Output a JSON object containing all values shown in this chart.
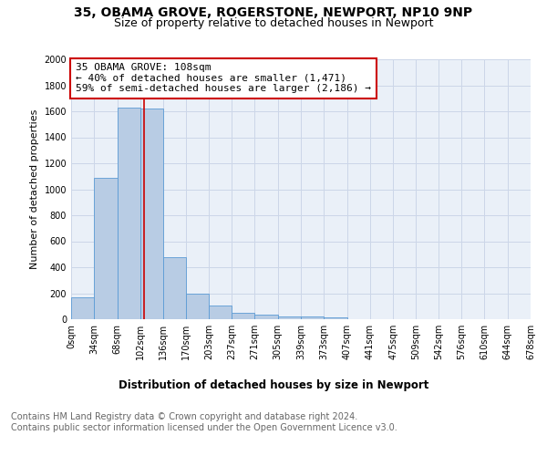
{
  "title1": "35, OBAMA GROVE, ROGERSTONE, NEWPORT, NP10 9NP",
  "title2": "Size of property relative to detached houses in Newport",
  "xlabel": "Distribution of detached houses by size in Newport",
  "ylabel": "Number of detached properties",
  "bin_edges": [
    0,
    34,
    68,
    102,
    136,
    170,
    203,
    237,
    271,
    305,
    339,
    373,
    407,
    441,
    475,
    509,
    542,
    576,
    610,
    644,
    678
  ],
  "bar_heights": [
    170,
    1090,
    1630,
    1620,
    480,
    200,
    105,
    50,
    35,
    20,
    20,
    15,
    0,
    0,
    0,
    0,
    0,
    0,
    0,
    0
  ],
  "bar_color": "#b8cce4",
  "bar_edge_color": "#5b9bd5",
  "property_size": 108,
  "vline_color": "#cc0000",
  "annotation_line1": "35 OBAMA GROVE: 108sqm",
  "annotation_line2": "← 40% of detached houses are smaller (1,471)",
  "annotation_line3": "59% of semi-detached houses are larger (2,186) →",
  "annotation_box_color": "#cc0000",
  "ylim": [
    0,
    2000
  ],
  "yticks": [
    0,
    200,
    400,
    600,
    800,
    1000,
    1200,
    1400,
    1600,
    1800,
    2000
  ],
  "grid_color": "#ccd6e8",
  "bg_color": "#eaf0f8",
  "footnote_line1": "Contains HM Land Registry data © Crown copyright and database right 2024.",
  "footnote_line2": "Contains public sector information licensed under the Open Government Licence v3.0.",
  "title1_fontsize": 10,
  "title2_fontsize": 9,
  "xlabel_fontsize": 8.5,
  "ylabel_fontsize": 8,
  "annotation_fontsize": 8,
  "footnote_fontsize": 7,
  "tick_fontsize": 7
}
